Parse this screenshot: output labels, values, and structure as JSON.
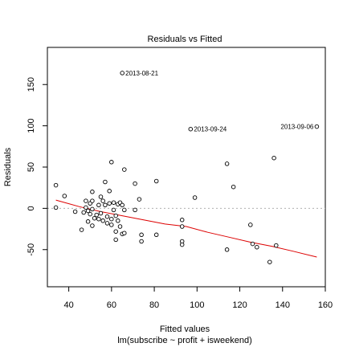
{
  "chart_data": {
    "type": "scatter",
    "title": "Residuals vs Fitted",
    "xlabel": "Fitted values",
    "subtitle": "lm(subscribe ~ profit + isweekend)",
    "ylabel": "Residuals",
    "xlim": [
      30,
      160
    ],
    "ylim": [
      -95,
      195
    ],
    "xticks": [
      40,
      60,
      80,
      100,
      120,
      140,
      160
    ],
    "yticks": [
      -50,
      0,
      50,
      100,
      150
    ],
    "zero_line": 0,
    "grid": false,
    "colors": {
      "points": "#000000",
      "smooth": "#dd0000",
      "zero_line": "#b0b0b0"
    },
    "points": [
      {
        "x": 34,
        "y": 28
      },
      {
        "x": 34,
        "y": 1
      },
      {
        "x": 38,
        "y": 15
      },
      {
        "x": 43,
        "y": -4
      },
      {
        "x": 46,
        "y": -26
      },
      {
        "x": 47,
        "y": -5
      },
      {
        "x": 48,
        "y": 1
      },
      {
        "x": 48,
        "y": 9
      },
      {
        "x": 49,
        "y": -3
      },
      {
        "x": 49,
        "y": -16
      },
      {
        "x": 50,
        "y": 6
      },
      {
        "x": 50,
        "y": -7
      },
      {
        "x": 51,
        "y": 20
      },
      {
        "x": 51,
        "y": 9
      },
      {
        "x": 51,
        "y": -1
      },
      {
        "x": 51,
        "y": -21
      },
      {
        "x": 52,
        "y": -12
      },
      {
        "x": 53,
        "y": -8
      },
      {
        "x": 54,
        "y": 4
      },
      {
        "x": 54,
        "y": -13
      },
      {
        "x": 55,
        "y": 14
      },
      {
        "x": 55,
        "y": -6
      },
      {
        "x": 56,
        "y": 9
      },
      {
        "x": 56,
        "y": -15
      },
      {
        "x": 57,
        "y": 32
      },
      {
        "x": 57,
        "y": 4
      },
      {
        "x": 58,
        "y": -10
      },
      {
        "x": 58,
        "y": -18
      },
      {
        "x": 59,
        "y": 21
      },
      {
        "x": 59,
        "y": 6
      },
      {
        "x": 60,
        "y": 56
      },
      {
        "x": 60,
        "y": -13
      },
      {
        "x": 60,
        "y": -20
      },
      {
        "x": 61,
        "y": -2
      },
      {
        "x": 61,
        "y": 7
      },
      {
        "x": 62,
        "y": -9
      },
      {
        "x": 62,
        "y": -28
      },
      {
        "x": 62,
        "y": -38
      },
      {
        "x": 63,
        "y": 5
      },
      {
        "x": 63,
        "y": -15
      },
      {
        "x": 64,
        "y": 7
      },
      {
        "x": 64,
        "y": -22
      },
      {
        "x": 65,
        "y": 4
      },
      {
        "x": 65,
        "y": -31
      },
      {
        "x": 66,
        "y": 47
      },
      {
        "x": 66,
        "y": -2
      },
      {
        "x": 66,
        "y": -30
      },
      {
        "x": 71,
        "y": 30
      },
      {
        "x": 71,
        "y": -2
      },
      {
        "x": 73,
        "y": 11
      },
      {
        "x": 74,
        "y": -32
      },
      {
        "x": 74,
        "y": -40
      },
      {
        "x": 81,
        "y": 33
      },
      {
        "x": 81,
        "y": -32
      },
      {
        "x": 93,
        "y": -14
      },
      {
        "x": 93,
        "y": -22
      },
      {
        "x": 93,
        "y": -40
      },
      {
        "x": 93,
        "y": -44
      },
      {
        "x": 99,
        "y": 13
      },
      {
        "x": 114,
        "y": 54
      },
      {
        "x": 114,
        "y": -50
      },
      {
        "x": 117,
        "y": 26
      },
      {
        "x": 125,
        "y": -20
      },
      {
        "x": 126,
        "y": -43
      },
      {
        "x": 128,
        "y": -47
      },
      {
        "x": 134,
        "y": -65
      },
      {
        "x": 136,
        "y": 61
      },
      {
        "x": 137,
        "y": -45
      },
      {
        "x": 65,
        "y": 164,
        "label": "2013-08-21"
      },
      {
        "x": 97,
        "y": 96,
        "label": "2013-09-24"
      },
      {
        "x": 156,
        "y": 99,
        "label": "2013-09-06"
      }
    ],
    "smooth_line": [
      {
        "x": 34,
        "y": 10
      },
      {
        "x": 45,
        "y": 2
      },
      {
        "x": 55,
        "y": -4
      },
      {
        "x": 65,
        "y": -9
      },
      {
        "x": 75,
        "y": -14
      },
      {
        "x": 85,
        "y": -19
      },
      {
        "x": 95,
        "y": -22
      },
      {
        "x": 105,
        "y": -29
      },
      {
        "x": 115,
        "y": -35
      },
      {
        "x": 125,
        "y": -41
      },
      {
        "x": 135,
        "y": -46
      },
      {
        "x": 145,
        "y": -52
      },
      {
        "x": 156,
        "y": -59
      }
    ]
  }
}
